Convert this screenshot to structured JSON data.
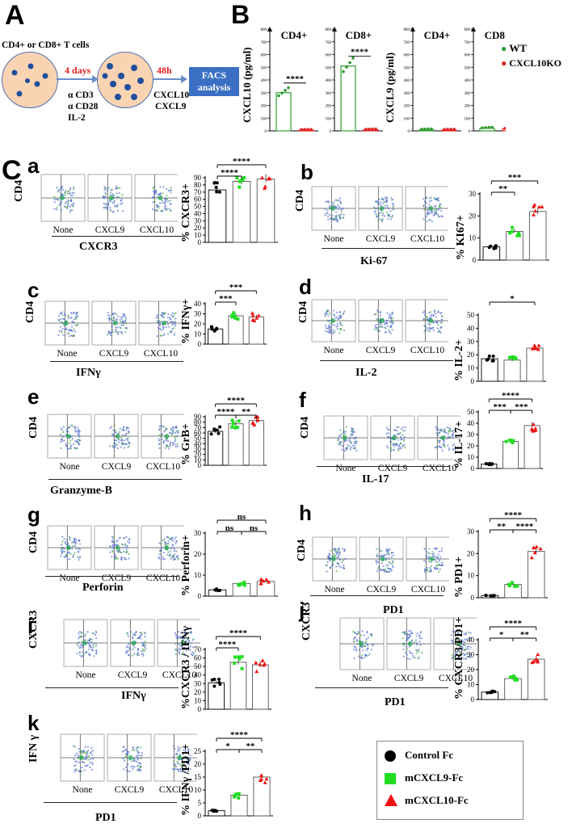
{
  "figure": {
    "panelA": {
      "letter": "A",
      "cells_label": "CD4+ or CD8+ T cells",
      "step1_time": "4 days",
      "stimulants": [
        "α CD3",
        "α CD28",
        "IL-2"
      ],
      "step2_time": "48h",
      "treatments": [
        "CXCL10",
        "CXCL9"
      ],
      "readout": "FACS analysis"
    },
    "panelB": {
      "letter": "B",
      "legend": [
        {
          "label": "WT",
          "color": "#2e9b2e"
        },
        {
          "label": "CXCL10KO",
          "color": "#e02222"
        }
      ],
      "group_labels": [
        "CD4+",
        "CD8+",
        "CD4+",
        "CD8+"
      ]
    },
    "panelC": {
      "letter": "C"
    },
    "legend": [
      {
        "label": "Control Fc",
        "color": "#000000",
        "shape": "circle"
      },
      {
        "label": "mCXCL9-Fc",
        "color": "#22dd22",
        "shape": "square"
      },
      {
        "label": "mCXCL10-Fc",
        "color": "#ee1111",
        "shape": "triangle"
      }
    ],
    "conditions": [
      "None",
      "CXCL9",
      "CXCL10"
    ],
    "subpanels": [
      {
        "id": "a",
        "y_axis": "CD4",
        "x_axis": "CXCR3",
        "ylabel": "% CXCR3+"
      },
      {
        "id": "b",
        "y_axis": "CD4",
        "x_axis": "Ki-67",
        "ylabel": "% KI67+"
      },
      {
        "id": "c",
        "y_axis": "CD4",
        "x_axis": "IFNγ",
        "ylabel": "% IFNγ+"
      },
      {
        "id": "d",
        "y_axis": "CD4",
        "x_axis": "IL-2",
        "ylabel": "% IL-2+"
      },
      {
        "id": "e",
        "y_axis": "CD4",
        "x_axis": "Granzyme-B",
        "ylabel": "% GrB+"
      },
      {
        "id": "f",
        "y_axis": "CD4",
        "x_axis": "IL-17",
        "ylabel": "% IL-17+"
      },
      {
        "id": "g",
        "y_axis": "CD4",
        "x_axis": "Perforin",
        "ylabel": "% Perforin+"
      },
      {
        "id": "h",
        "y_axis": "CD4",
        "x_axis": "PD1",
        "ylabel": "% PD1+"
      },
      {
        "id": "i",
        "y_axis": "CXCR3",
        "x_axis": "IFNγ",
        "ylabel": "%CXCR3 / IFNγ+"
      },
      {
        "id": "j",
        "y_axis": "CXCR3",
        "x_axis": "PD1",
        "ylabel": "% CXCR3/PD1+"
      },
      {
        "id": "k",
        "y_axis": "IFN γ",
        "x_axis": "PD1",
        "ylabel": "% IFNγ /PD1+"
      }
    ]
  },
  "chart_data": [
    {
      "id": "B-CXCL10-CD4",
      "type": "bar",
      "ylabel": "CXCL10 (pg/ml)",
      "title": "CD4+",
      "categories": [
        "WT",
        "CXCL10KO"
      ],
      "values": [
        300,
        5
      ],
      "ylim": [
        0,
        800
      ],
      "ticks": [
        0,
        100,
        200,
        300,
        400,
        500,
        600,
        700,
        800
      ],
      "colors": [
        "#2e9b2e",
        "#e02222"
      ],
      "annotations": [
        "****"
      ]
    },
    {
      "id": "B-CXCL10-CD8",
      "type": "bar",
      "title": "CD8+",
      "categories": [
        "WT",
        "CXCL10KO"
      ],
      "values": [
        510,
        8
      ],
      "ylim": [
        0,
        800
      ],
      "ticks": [
        0,
        100,
        200,
        300,
        400,
        500,
        600,
        700,
        800
      ],
      "colors": [
        "#2e9b2e",
        "#e02222"
      ],
      "annotations": [
        "****"
      ]
    },
    {
      "id": "B-CXCL9-CD4",
      "type": "bar",
      "ylabel": "CXCL9 (pg/ml)",
      "title": "CD4+",
      "categories": [
        "WT",
        "CXCL10KO"
      ],
      "values": [
        8,
        6
      ],
      "ylim": [
        0,
        800
      ],
      "ticks": [
        0,
        100,
        200,
        300,
        400,
        500,
        600,
        700,
        800
      ],
      "colors": [
        "#2e9b2e",
        "#e02222"
      ]
    },
    {
      "id": "B-CXCL9-CD8",
      "type": "bar",
      "title": "CD8+",
      "categories": [
        "WT",
        "CXCL10KO"
      ],
      "values": [
        20,
        15
      ],
      "ylim": [
        0,
        800
      ],
      "ticks": [
        0,
        100,
        200,
        300,
        400,
        500,
        600,
        700,
        800
      ],
      "colors": [
        "#2e9b2e",
        "#e02222"
      ]
    },
    {
      "id": "a",
      "type": "bar",
      "ylabel": "% CXCR3+",
      "categories": [
        "Control Fc",
        "mCXCL9-Fc",
        "mCXCL10-Fc"
      ],
      "values": [
        73,
        85,
        88
      ],
      "ylim": [
        0,
        90
      ],
      "ticks": [
        0,
        10,
        20,
        30,
        40,
        50,
        60,
        70,
        80,
        90
      ],
      "annotations": [
        "****",
        "****"
      ]
    },
    {
      "id": "b",
      "type": "bar",
      "ylabel": "% KI67+",
      "categories": [
        "Control Fc",
        "mCXCL9-Fc",
        "mCXCL10-Fc"
      ],
      "values": [
        6,
        13,
        22
      ],
      "ylim": [
        0,
        30
      ],
      "ticks": [
        0,
        10,
        20,
        30
      ],
      "annotations": [
        "***",
        "**"
      ]
    },
    {
      "id": "c",
      "type": "bar",
      "ylabel": "% IFNγ+",
      "categories": [
        "Control Fc",
        "mCXCL9-Fc",
        "mCXCL10-Fc"
      ],
      "values": [
        15,
        28,
        27
      ],
      "ylim": [
        0,
        40
      ],
      "ticks": [
        0,
        10,
        20,
        30,
        40
      ],
      "annotations": [
        "***",
        "***"
      ]
    },
    {
      "id": "d",
      "type": "bar",
      "ylabel": "% IL-2+",
      "categories": [
        "Control Fc",
        "mCXCL9-Fc",
        "mCXCL10-Fc"
      ],
      "values": [
        17,
        16,
        25
      ],
      "ylim": [
        0,
        50
      ],
      "ticks": [
        0,
        10,
        20,
        30,
        40,
        50
      ],
      "annotations": [
        "*"
      ]
    },
    {
      "id": "e",
      "type": "bar",
      "ylabel": "% GrB+",
      "categories": [
        "Control Fc",
        "mCXCL9-Fc",
        "mCXCL10-Fc"
      ],
      "values": [
        63,
        77,
        83
      ],
      "ylim": [
        0,
        90
      ],
      "ticks": [
        0,
        10,
        20,
        30,
        40,
        50,
        60,
        70,
        80,
        90
      ],
      "annotations": [
        "****",
        "****",
        "**"
      ]
    },
    {
      "id": "f",
      "type": "bar",
      "ylabel": "% IL-17+",
      "categories": [
        "Control Fc",
        "mCXCL9-Fc",
        "mCXCL10-Fc"
      ],
      "values": [
        4,
        24,
        38
      ],
      "ylim": [
        0,
        50
      ],
      "ticks": [
        0,
        10,
        20,
        30,
        40,
        50
      ],
      "annotations": [
        "****",
        "***",
        "***"
      ]
    },
    {
      "id": "g",
      "type": "bar",
      "ylabel": "% Perforin+",
      "categories": [
        "Control Fc",
        "mCXCL9-Fc",
        "mCXCL10-Fc"
      ],
      "values": [
        3,
        6,
        7
      ],
      "ylim": [
        0,
        30
      ],
      "ticks": [
        0,
        10,
        20,
        30
      ],
      "annotations": [
        "ns",
        "ns",
        "ns"
      ]
    },
    {
      "id": "h",
      "type": "bar",
      "ylabel": "% PD1+",
      "categories": [
        "Control Fc",
        "mCXCL9-Fc",
        "mCXCL10-Fc"
      ],
      "values": [
        1,
        6,
        21
      ],
      "ylim": [
        0,
        30
      ],
      "ticks": [
        0,
        10,
        20,
        30
      ],
      "annotations": [
        "****",
        "**",
        "****"
      ]
    },
    {
      "id": "i",
      "type": "bar",
      "ylabel": "%CXCR3 / IFNγ+",
      "categories": [
        "Control Fc",
        "mCXCL9-Fc",
        "mCXCL10-Fc"
      ],
      "values": [
        31,
        55,
        52
      ],
      "ylim": [
        0,
        70
      ],
      "ticks": [
        0,
        10,
        20,
        30,
        40,
        50,
        60,
        70
      ],
      "annotations": [
        "****",
        "****"
      ]
    },
    {
      "id": "j",
      "type": "bar",
      "ylabel": "% CXCR3/PD1+",
      "categories": [
        "Control Fc",
        "mCXCL9-Fc",
        "mCXCL10-Fc"
      ],
      "values": [
        5,
        14,
        27
      ],
      "ylim": [
        0,
        40
      ],
      "ticks": [
        0,
        10,
        20,
        30,
        40
      ],
      "annotations": [
        "****",
        "*",
        "**"
      ]
    },
    {
      "id": "k",
      "type": "bar",
      "ylabel": "% IFNγ /PD1+",
      "categories": [
        "Control Fc",
        "mCXCL9-Fc",
        "mCXCL10-Fc"
      ],
      "values": [
        2,
        8,
        15
      ],
      "ylim": [
        0,
        25
      ],
      "ticks": [
        0,
        5,
        10,
        15,
        20,
        25
      ],
      "annotations": [
        "****",
        "*",
        "**"
      ]
    }
  ]
}
